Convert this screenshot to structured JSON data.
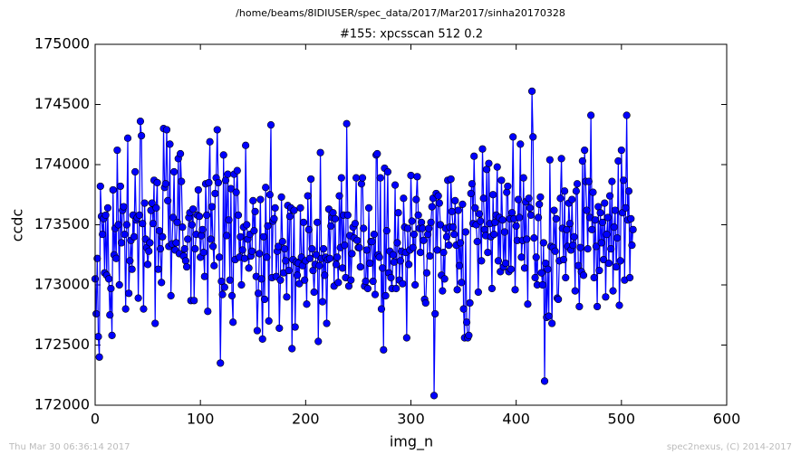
{
  "chart_data": {
    "type": "line",
    "suptitle": "/home/beams/8IDIUSER/spec_data/2017/Mar2017/sinha20170328",
    "title": "#155: xpcsscan 512 0.2",
    "x_label": "img_n",
    "y_label": "ccdc",
    "footer_left": "Thu Mar 30 06:36:14 2017",
    "footer_right": "spec2nexus, (C) 2014-2017",
    "xlim": [
      0,
      600
    ],
    "xticks": [
      0,
      100,
      200,
      300,
      400,
      500,
      600
    ],
    "ylim": [
      172000,
      175000
    ],
    "yticks": [
      172000,
      172500,
      173000,
      173500,
      174000,
      174500,
      175000
    ],
    "x": [
      0,
      1,
      2,
      3,
      4,
      5,
      6,
      7,
      8,
      9,
      10,
      11,
      12,
      13,
      14,
      15,
      16,
      17,
      18,
      19,
      20,
      21,
      22,
      23,
      24,
      25,
      26,
      27,
      28,
      29,
      30,
      31,
      32,
      33,
      34,
      35,
      36,
      37,
      38,
      39,
      40,
      41,
      42,
      43,
      44,
      45,
      46,
      47,
      48,
      49,
      50,
      51,
      52,
      53,
      54,
      55,
      56,
      57,
      58,
      59,
      60,
      61,
      62,
      63,
      64,
      65,
      66,
      67,
      68,
      69,
      70,
      71,
      72,
      73,
      74,
      75,
      76,
      77,
      78,
      79,
      80,
      81,
      82,
      83,
      84,
      85,
      86,
      87,
      88,
      89,
      90,
      91,
      92,
      93,
      94,
      95,
      96,
      97,
      98,
      99,
      100,
      101,
      102,
      103,
      104,
      105,
      106,
      107,
      108,
      109,
      110,
      111,
      112,
      113,
      114,
      115,
      116,
      117,
      118,
      119,
      120,
      121,
      122,
      123,
      124,
      125,
      126,
      127,
      128,
      129,
      130,
      131,
      132,
      133,
      134,
      135,
      136,
      137,
      138,
      139,
      140,
      141,
      142,
      143,
      144,
      145,
      146,
      147,
      148,
      149,
      150,
      151,
      152,
      153,
      154,
      155,
      156,
      157,
      158,
      159,
      160,
      161,
      162,
      163,
      164,
      165,
      166,
      167,
      168,
      169,
      170,
      171,
      172,
      173,
      174,
      175,
      176,
      177,
      178,
      179,
      180,
      181,
      182,
      183,
      184,
      185,
      186,
      187,
      188,
      189,
      190,
      191,
      192,
      193,
      194,
      195,
      196,
      197,
      198,
      199,
      200,
      201,
      202,
      203,
      204,
      205,
      206,
      207,
      208,
      209,
      210,
      211,
      212,
      213,
      214,
      215,
      216,
      217,
      218,
      219,
      220,
      221,
      222,
      223,
      224,
      225,
      226,
      227,
      228,
      229,
      230,
      231,
      232,
      233,
      234,
      235,
      236,
      237,
      238,
      239,
      240,
      241,
      242,
      243,
      244,
      245,
      246,
      247,
      248,
      249,
      250,
      251,
      252,
      253,
      254,
      255,
      256,
      257,
      258,
      259,
      260,
      261,
      262,
      263,
      264,
      265,
      266,
      267,
      268,
      269,
      270,
      271,
      272,
      273,
      274,
      275,
      276,
      277,
      278,
      279,
      280,
      281,
      282,
      283,
      284,
      285,
      286,
      287,
      288,
      289,
      290,
      291,
      292,
      293,
      294,
      295,
      296,
      297,
      298,
      299,
      300,
      301,
      302,
      303,
      304,
      305,
      306,
      307,
      308,
      309,
      310,
      311,
      312,
      313,
      314,
      315,
      316,
      317,
      318,
      319,
      320,
      321,
      322,
      323,
      324,
      325,
      326,
      327,
      328,
      329,
      330,
      331,
      332,
      333,
      334,
      335,
      336,
      337,
      338,
      339,
      340,
      341,
      342,
      343,
      344,
      345,
      346,
      347,
      348,
      349,
      350,
      351,
      352,
      353,
      354,
      355,
      356,
      357,
      358,
      359,
      360,
      361,
      362,
      363,
      364,
      365,
      366,
      367,
      368,
      369,
      370,
      371,
      372,
      373,
      374,
      375,
      376,
      377,
      378,
      379,
      380,
      381,
      382,
      383,
      384,
      385,
      386,
      387,
      388,
      389,
      390,
      391,
      392,
      393,
      394,
      395,
      396,
      397,
      398,
      399,
      400,
      401,
      402,
      403,
      404,
      405,
      406,
      407,
      408,
      409,
      410,
      411,
      412,
      413,
      414,
      415,
      416,
      417,
      418,
      419,
      420,
      421,
      422,
      423,
      424,
      425,
      426,
      427,
      428,
      429,
      430,
      431,
      432,
      433,
      434,
      435,
      436,
      437,
      438,
      439,
      440,
      441,
      442,
      443,
      444,
      445,
      446,
      447,
      448,
      449,
      450,
      451,
      452,
      453,
      454,
      455,
      456,
      457,
      458,
      459,
      460,
      461,
      462,
      463,
      464,
      465,
      466,
      467,
      468,
      469,
      470,
      471,
      472,
      473,
      474,
      475,
      476,
      477,
      478,
      479,
      480,
      481,
      482,
      483,
      484,
      485,
      486,
      487,
      488,
      489,
      490,
      491,
      492,
      493,
      494,
      495,
      496,
      497,
      498,
      499,
      500,
      501,
      502,
      503,
      504,
      505,
      506,
      507,
      508,
      509,
      510,
      511
    ],
    "series": [
      {
        "name": "ccdc",
        "color": "#0000ff",
        "values": [
          173050,
          172760,
          173220,
          172570,
          172400,
          173820,
          173570,
          173420,
          173550,
          173100,
          173580,
          173080,
          173640,
          173050,
          172750,
          172970,
          172580,
          173790,
          173250,
          173470,
          173220,
          174120,
          173500,
          173000,
          173820,
          173350,
          173620,
          173650,
          173420,
          172800,
          173500,
          174220,
          172930,
          173200,
          173370,
          173130,
          173580,
          173400,
          173940,
          173540,
          173560,
          172890,
          173580,
          174360,
          174240,
          173510,
          172800,
          173680,
          173380,
          173310,
          173170,
          173280,
          173350,
          173620,
          173680,
          173510,
          173870,
          172680,
          173640,
          173850,
          173130,
          173450,
          173300,
          173020,
          173400,
          174300,
          173810,
          173840,
          174290,
          173700,
          173320,
          174170,
          172910,
          173340,
          173560,
          173940,
          173290,
          173350,
          173520,
          174050,
          173260,
          174090,
          173860,
          173480,
          173240,
          173300,
          173200,
          173150,
          173380,
          173560,
          173600,
          172870,
          173500,
          173630,
          172870,
          173300,
          173420,
          173580,
          173790,
          173570,
          173230,
          173410,
          173460,
          173270,
          173070,
          173840,
          173580,
          172780,
          173850,
          174190,
          173380,
          173650,
          173320,
          173160,
          173760,
          173890,
          174290,
          173850,
          173230,
          172350,
          173030,
          172920,
          174080,
          172980,
          173870,
          173410,
          173920,
          173540,
          173040,
          173800,
          172910,
          172690,
          173920,
          173210,
          173770,
          173950,
          173580,
          173230,
          173400,
          173000,
          173290,
          173480,
          173220,
          174160,
          173500,
          173380,
          173140,
          173420,
          173240,
          173280,
          173700,
          173450,
          173610,
          173070,
          172620,
          172930,
          173260,
          173710,
          173050,
          172550,
          173400,
          172880,
          173810,
          173230,
          173490,
          172700,
          173750,
          174330,
          173060,
          173530,
          173550,
          173640,
          173070,
          173280,
          173320,
          172640,
          173040,
          173730,
          173360,
          173100,
          173300,
          173200,
          172900,
          173660,
          173120,
          173570,
          173640,
          172470,
          173210,
          173620,
          172650,
          173190,
          173080,
          173180,
          173010,
          173640,
          173230,
          173160,
          173520,
          173040,
          173200,
          172840,
          173740,
          173460,
          173220,
          173880,
          173300,
          173120,
          172940,
          173170,
          173250,
          173520,
          172530,
          173160,
          174100,
          173220,
          172860,
          173300,
          173080,
          173230,
          172680,
          173210,
          173630,
          173220,
          173490,
          173560,
          173600,
          172990,
          173550,
          173170,
          173230,
          173020,
          173740,
          173310,
          173890,
          173140,
          173580,
          173330,
          173060,
          174340,
          173580,
          172990,
          173410,
          173040,
          173260,
          173480,
          173390,
          173510,
          173890,
          173370,
          173310,
          173310,
          173150,
          173840,
          173890,
          173470,
          172990,
          173030,
          173290,
          172970,
          173640,
          173180,
          173360,
          173360,
          173030,
          173420,
          172920,
          174080,
          174090,
          173250,
          173230,
          173890,
          172800,
          173140,
          172460,
          173970,
          172910,
          173450,
          173940,
          173100,
          173280,
          173060,
          172970,
          173250,
          173190,
          173830,
          172970,
          173350,
          173600,
          173040,
          173200,
          173280,
          173010,
          173720,
          173480,
          173270,
          172560,
          173470,
          173170,
          173290,
          173910,
          173530,
          173310,
          173420,
          173000,
          173710,
          173900,
          173580,
          173470,
          173270,
          173520,
          173470,
          173370,
          172880,
          172850,
          173100,
          173420,
          173470,
          173240,
          173520,
          173650,
          173720,
          172080,
          172760,
          173760,
          173290,
          173740,
          173680,
          173500,
          173080,
          172950,
          173270,
          173050,
          173470,
          173400,
          173870,
          173330,
          173480,
          173880,
          173610,
          173480,
          173420,
          173700,
          173330,
          172960,
          173620,
          173160,
          173350,
          173020,
          173670,
          172800,
          172560,
          173440,
          172690,
          172560,
          172580,
          172850,
          173760,
          173840,
          173510,
          174070,
          173640,
          173500,
          173360,
          172940,
          173590,
          173530,
          173200,
          174130,
          173720,
          173460,
          173410,
          173960,
          173270,
          174010,
          173510,
          173400,
          172970,
          173750,
          173420,
          173520,
          173580,
          173980,
          173200,
          173560,
          173110,
          173870,
          173540,
          173150,
          173440,
          173180,
          173770,
          173820,
          173110,
          173550,
          173130,
          173600,
          174230,
          173550,
          172960,
          173490,
          173370,
          173710,
          173560,
          174170,
          173230,
          173370,
          173890,
          173140,
          173690,
          173380,
          172840,
          173720,
          173640,
          173580,
          174610,
          174230,
          173390,
          173060,
          173230,
          173000,
          173560,
          173670,
          173730,
          173100,
          173000,
          173350,
          172200,
          173180,
          172730,
          173130,
          172740,
          174040,
          173320,
          172680,
          173310,
          173620,
          173280,
          173550,
          172890,
          172880,
          173200,
          173720,
          174050,
          173470,
          173210,
          173780,
          173060,
          173460,
          173320,
          173680,
          173510,
          173290,
          173710,
          173330,
          173400,
          172950,
          173780,
          173840,
          173160,
          172820,
          173310,
          173110,
          174030,
          173080,
          174120,
          173860,
          173620,
          173300,
          173860,
          173560,
          174410,
          173460,
          173770,
          173060,
          173540,
          173320,
          172820,
          173650,
          173120,
          173600,
          173350,
          173520,
          173210,
          173680,
          172900,
          173420,
          173560,
          173180,
          173740,
          173300,
          173860,
          172950,
          173480,
          173620,
          173150,
          173390,
          174030,
          172830,
          173200,
          174120,
          173600,
          173870,
          173040,
          173640,
          174410,
          173540,
          173780,
          173060,
          173550,
          173330,
          173460
        ]
      }
    ]
  }
}
